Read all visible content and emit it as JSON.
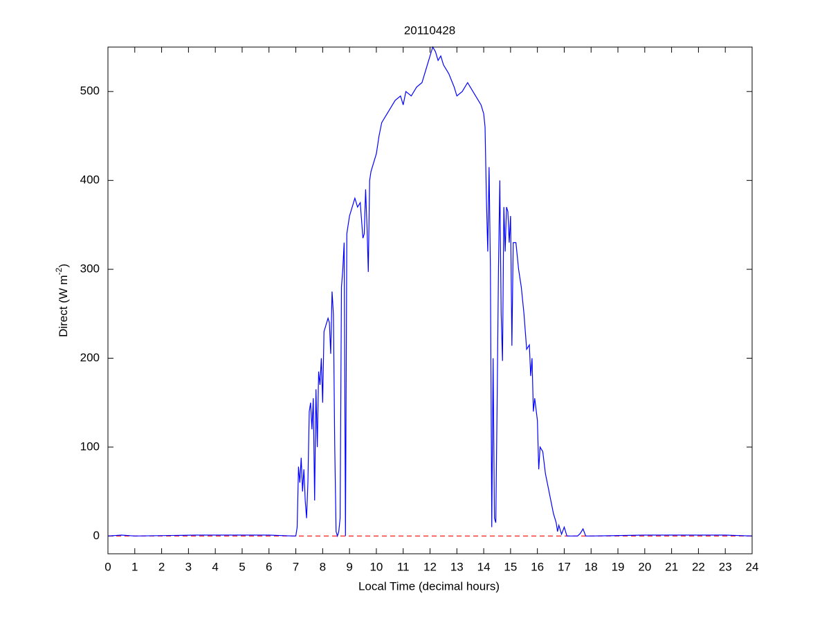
{
  "chart_data": {
    "type": "line",
    "title": "20110428",
    "xlabel": "Local Time (decimal hours)",
    "ylabel": [
      "Direct (W m",
      "-2",
      ")"
    ],
    "x": [
      0,
      0.5,
      1,
      3.3,
      6,
      6.9,
      7,
      7.05,
      7.1,
      7.15,
      7.2,
      7.25,
      7.3,
      7.35,
      7.4,
      7.45,
      7.5,
      7.55,
      7.6,
      7.65,
      7.7,
      7.75,
      7.8,
      7.85,
      7.9,
      7.95,
      8,
      8.05,
      8.1,
      8.2,
      8.25,
      8.3,
      8.35,
      8.4,
      8.45,
      8.5,
      8.55,
      8.6,
      8.65,
      8.7,
      8.75,
      8.8,
      8.85,
      8.9,
      9,
      9.1,
      9.2,
      9.3,
      9.4,
      9.5,
      9.55,
      9.6,
      9.65,
      9.7,
      9.75,
      9.8,
      9.9,
      10,
      10.1,
      10.2,
      10.3,
      10.5,
      10.7,
      10.9,
      11,
      11.1,
      11.3,
      11.5,
      11.7,
      11.8,
      11.9,
      12,
      12.1,
      12.2,
      12.3,
      12.4,
      12.5,
      12.7,
      12.9,
      13,
      13.2,
      13.4,
      13.5,
      13.7,
      13.9,
      14,
      14.05,
      14.1,
      14.15,
      14.2,
      14.25,
      14.3,
      14.35,
      14.4,
      14.45,
      14.5,
      14.55,
      14.6,
      14.65,
      14.7,
      14.75,
      14.8,
      14.85,
      14.9,
      14.95,
      15,
      15.05,
      15.1,
      15.2,
      15.3,
      15.4,
      15.5,
      15.6,
      15.7,
      15.75,
      15.8,
      15.85,
      15.9,
      16,
      16.05,
      16.1,
      16.2,
      16.3,
      16.4,
      16.5,
      16.6,
      16.7,
      16.75,
      16.8,
      16.9,
      17,
      17.1,
      17.5,
      17.6,
      17.7,
      17.8,
      18,
      20,
      22,
      23,
      24
    ],
    "series": [
      {
        "color": "#0000ff",
        "values": [
          0,
          1,
          0,
          1,
          1,
          0,
          0,
          10,
          78,
          60,
          88,
          50,
          75,
          40,
          20,
          60,
          140,
          150,
          120,
          155,
          40,
          165,
          100,
          185,
          170,
          200,
          150,
          230,
          235,
          245,
          240,
          205,
          275,
          250,
          100,
          5,
          0,
          5,
          20,
          280,
          300,
          330,
          0,
          340,
          360,
          370,
          380,
          370,
          375,
          335,
          340,
          390,
          350,
          297,
          400,
          410,
          420,
          430,
          450,
          465,
          470,
          480,
          490,
          495,
          485,
          500,
          495,
          505,
          510,
          520,
          530,
          540,
          550,
          545,
          535,
          540,
          530,
          520,
          505,
          495,
          500,
          510,
          505,
          495,
          485,
          475,
          460,
          380,
          320,
          415,
          300,
          10,
          200,
          20,
          15,
          150,
          300,
          400,
          250,
          197,
          370,
          320,
          370,
          365,
          330,
          360,
          214,
          330,
          330,
          300,
          280,
          250,
          210,
          215,
          180,
          200,
          140,
          155,
          130,
          75,
          100,
          95,
          70,
          55,
          40,
          25,
          15,
          5,
          12,
          2,
          10,
          0,
          0,
          3,
          8,
          0,
          0,
          1,
          1,
          1,
          0
        ]
      }
    ],
    "reference_line": {
      "value": 0,
      "color": "#ff0000",
      "style": "dashed"
    },
    "xlim": [
      0,
      24
    ],
    "xticks": [
      0,
      1,
      2,
      3,
      4,
      5,
      6,
      7,
      8,
      9,
      10,
      11,
      12,
      13,
      14,
      15,
      16,
      17,
      18,
      19,
      20,
      21,
      22,
      23,
      24
    ],
    "ylim": [
      -20,
      550
    ],
    "yticks": [
      0,
      100,
      200,
      300,
      400,
      500
    ],
    "grid": false
  }
}
